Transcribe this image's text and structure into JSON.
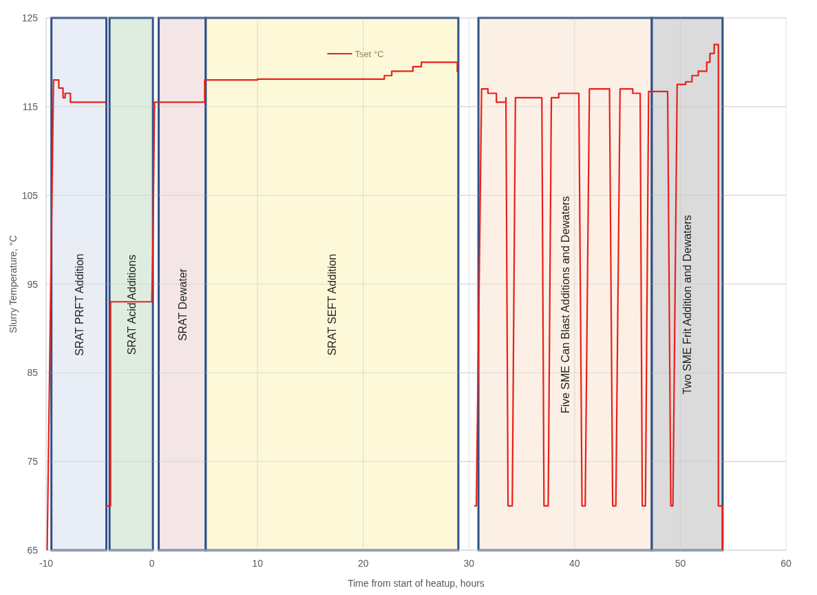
{
  "chart_data": {
    "type": "line",
    "xlabel": "Time from start of heatup, hours",
    "ylabel": "Slurry Temperature, °C",
    "xlim": [
      -10,
      60
    ],
    "xticks": [
      -10,
      0,
      10,
      20,
      30,
      40,
      50,
      60
    ],
    "ylim": [
      65,
      125
    ],
    "yticks": [
      65,
      75,
      85,
      95,
      105,
      115,
      125
    ],
    "grid": true,
    "legend": "top",
    "bands": [
      {
        "axis": "x",
        "from": -9.5,
        "to": -4.3,
        "label": "SRAT PRFT Addition",
        "color": "#e4eaf5"
      },
      {
        "axis": "x",
        "from": -4.0,
        "to": 0.1,
        "label": "SRAT Acid Additions",
        "color": "#d9eadc"
      },
      {
        "axis": "x",
        "from": 0.65,
        "to": 5.1,
        "label": "SRAT Dewater",
        "color": "#f2e2e3"
      },
      {
        "axis": "x",
        "from": 5.1,
        "to": 29.0,
        "label": "SRAT SEFT Addition",
        "color": "#fdf7d1"
      },
      {
        "axis": "x",
        "from": 30.9,
        "to": 47.3,
        "label": "Five SME Can Blast Additions and Dewaters",
        "color": "#fcede2"
      },
      {
        "axis": "x",
        "from": 47.3,
        "to": 54.0,
        "label": "Two SME Frit Addition and Dewaters",
        "color": "#d5d5d5"
      }
    ],
    "series": [
      {
        "name": "Tset °C",
        "color": "#e8201c",
        "x": [
          -9.9,
          -9.3,
          -8.8,
          -8.8,
          -8.4,
          -8.4,
          -8.2,
          -8.2,
          -7.7,
          -7.7,
          -4.4,
          null,
          -4.4,
          -3.9,
          -3.9,
          0.0,
          0.1,
          0.26,
          5.0,
          5.0,
          10.0,
          10.0,
          22.0,
          22.0,
          22.7,
          22.7,
          24.7,
          24.7,
          25.5,
          25.5,
          28.9,
          28.9,
          null,
          30.5,
          30.7,
          31.2,
          31.8,
          31.8,
          32.6,
          32.6,
          33.5,
          33.5,
          33.7,
          34.1,
          34.4,
          36.9,
          37.1,
          37.5,
          37.8,
          38.5,
          38.5,
          40.4,
          40.7,
          41.0,
          41.4,
          43.3,
          43.6,
          43.9,
          44.3,
          45.5,
          45.5,
          46.2,
          46.4,
          46.7,
          47.0,
          48.8,
          49.1,
          49.3,
          49.7,
          50.5,
          50.5,
          51.1,
          51.1,
          51.7,
          51.7,
          52.5,
          52.5,
          52.8,
          52.8,
          53.2,
          53.2,
          53.6,
          53.6,
          54.0,
          54.0
        ],
        "values": [
          65,
          118,
          118,
          117.1,
          117.1,
          116,
          116,
          116.5,
          116.5,
          115.5,
          115.5,
          null,
          70,
          70,
          93,
          93,
          99,
          115.5,
          115.5,
          118,
          118,
          118.1,
          118.1,
          118.5,
          118.5,
          119,
          119,
          119.5,
          119.5,
          120,
          120,
          118.9,
          null,
          70,
          70,
          117,
          117,
          116.5,
          116.5,
          115.5,
          115.5,
          116,
          70,
          70,
          116,
          116,
          70,
          70,
          116,
          116,
          116.5,
          116.5,
          70,
          70,
          117,
          117,
          70,
          70,
          117,
          117,
          116.5,
          116.5,
          70,
          70,
          116.7,
          116.7,
          70,
          70,
          117.5,
          117.5,
          117.8,
          117.8,
          118.5,
          118.5,
          119,
          119,
          120,
          120,
          121,
          121,
          122,
          122,
          70,
          70,
          65
        ]
      }
    ]
  }
}
